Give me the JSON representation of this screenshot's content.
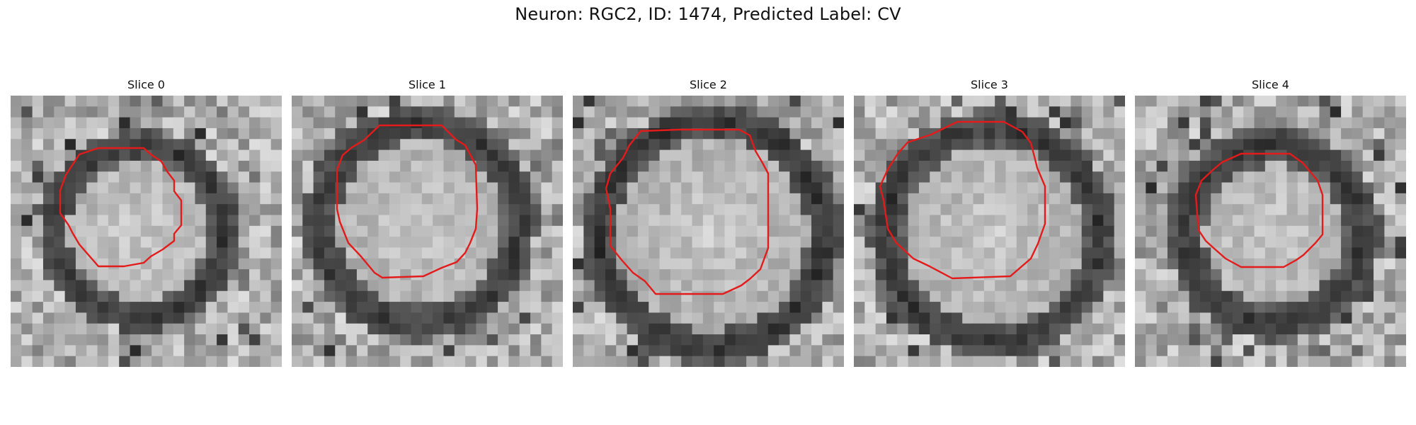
{
  "figure": {
    "title": "Neuron: RGC2, ID: 1474, Predicted Label: CV",
    "contour_color": "#e31b1b"
  },
  "panels": [
    {
      "title": "Slice 0",
      "seed": 11,
      "ring_contrast": 0.9
    },
    {
      "title": "Slice 1",
      "seed": 23,
      "ring_contrast": 0.75
    },
    {
      "title": "Slice 2",
      "seed": 37,
      "ring_contrast": 1.0
    },
    {
      "title": "Slice 3",
      "seed": 41,
      "ring_contrast": 0.85
    },
    {
      "title": "Slice 4",
      "seed": 59,
      "ring_contrast": 0.8
    }
  ]
}
